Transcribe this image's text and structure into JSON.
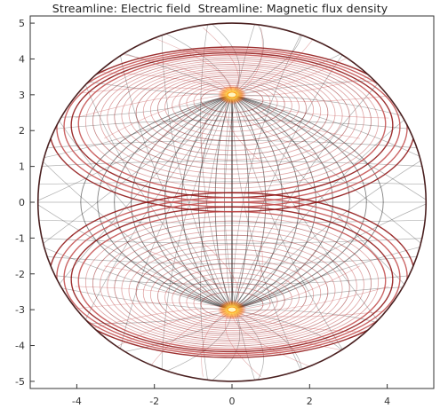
{
  "title": {
    "part1": "Streamline: Electric field",
    "part2": "Streamline: Magnetic flux density"
  },
  "colors": {
    "electric_field": "#1a1a1a",
    "magnetic_flux": "#8b0a0a",
    "magnetic_flux_light": "#c24a4a",
    "source_core": "#fff6c0",
    "source_glow": "#ff8a00",
    "axis": "#333333"
  },
  "chart_data": {
    "type": "streamline",
    "title": "Streamline: Electric field  Streamline: Magnetic flux density",
    "xlim": [
      -5.2,
      5.2
    ],
    "ylim": [
      -5.2,
      5.2
    ],
    "x_ticks": [
      -4,
      -2,
      0,
      2,
      4
    ],
    "y_ticks": [
      5,
      4,
      3,
      2,
      1,
      0,
      -1,
      -2,
      -3,
      -4,
      -5
    ],
    "x_tick_labels": [
      "-4",
      "-2",
      "0",
      "2",
      "4"
    ],
    "y_tick_labels": [
      "5",
      "4",
      "3",
      "2",
      "1",
      "0",
      "-1",
      "-2",
      "-3",
      "-4",
      "-5"
    ],
    "domain": {
      "shape": "circle",
      "center": [
        0,
        0
      ],
      "radius": 5
    },
    "sources": [
      {
        "x": 0,
        "y": 3
      },
      {
        "x": 0,
        "y": -3
      }
    ],
    "series": [
      {
        "name": "Electric field"
      },
      {
        "name": "Magnetic flux density"
      }
    ],
    "grid": false
  }
}
